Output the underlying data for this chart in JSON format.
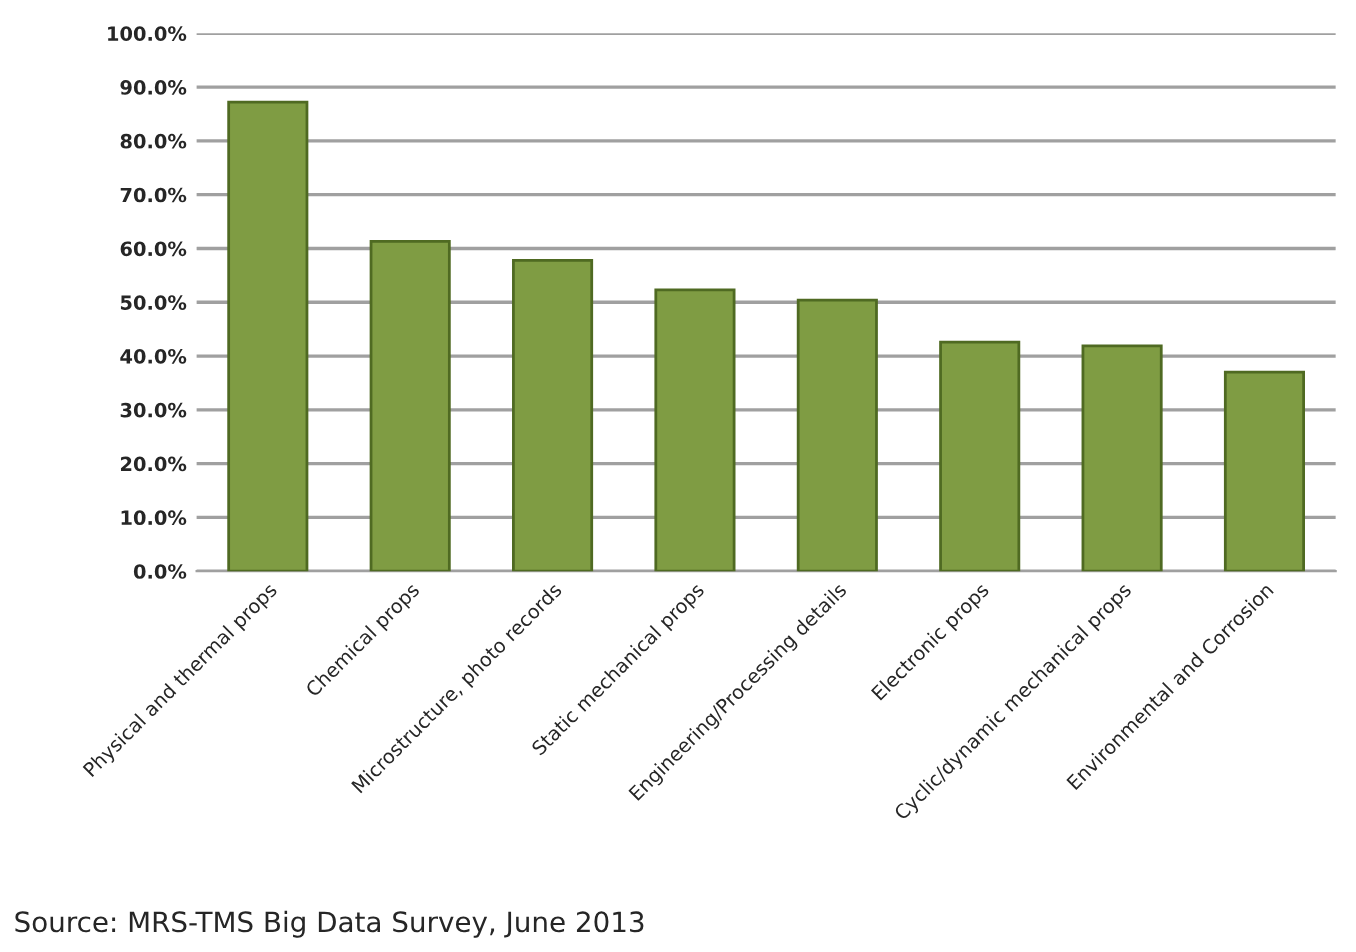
{
  "chart_data": {
    "type": "bar",
    "categories": [
      "Physical and thermal props",
      "Chemical props",
      "Microstructure, photo records",
      "Static mechanical props",
      "Engineering/Processing details",
      "Electronic props",
      "Cyclic/dynamic mechanical props",
      "Environmental and Corrosion"
    ],
    "values": [
      87.2,
      61.3,
      57.8,
      52.3,
      50.4,
      42.6,
      41.9,
      37.0
    ],
    "color": "#7f9c43",
    "ylim": [
      0,
      100
    ],
    "yticks": [
      {
        "value": 0,
        "label": "0.0%"
      },
      {
        "value": 10,
        "label": "10.0%"
      },
      {
        "value": 20,
        "label": "20.0%"
      },
      {
        "value": 30,
        "label": "30.0%"
      },
      {
        "value": 40,
        "label": "40.0%"
      },
      {
        "value": 50,
        "label": "50.0%"
      },
      {
        "value": 60,
        "label": "60.0%"
      },
      {
        "value": 70,
        "label": "70.0%"
      },
      {
        "value": 80,
        "label": "80.0%"
      },
      {
        "value": 90,
        "label": "90.0%"
      },
      {
        "value": 100,
        "label": "100.0%"
      }
    ],
    "grid": "y",
    "annotations": [
      "Source: MRS-TMS Big Data Survey, June 2013"
    ]
  }
}
